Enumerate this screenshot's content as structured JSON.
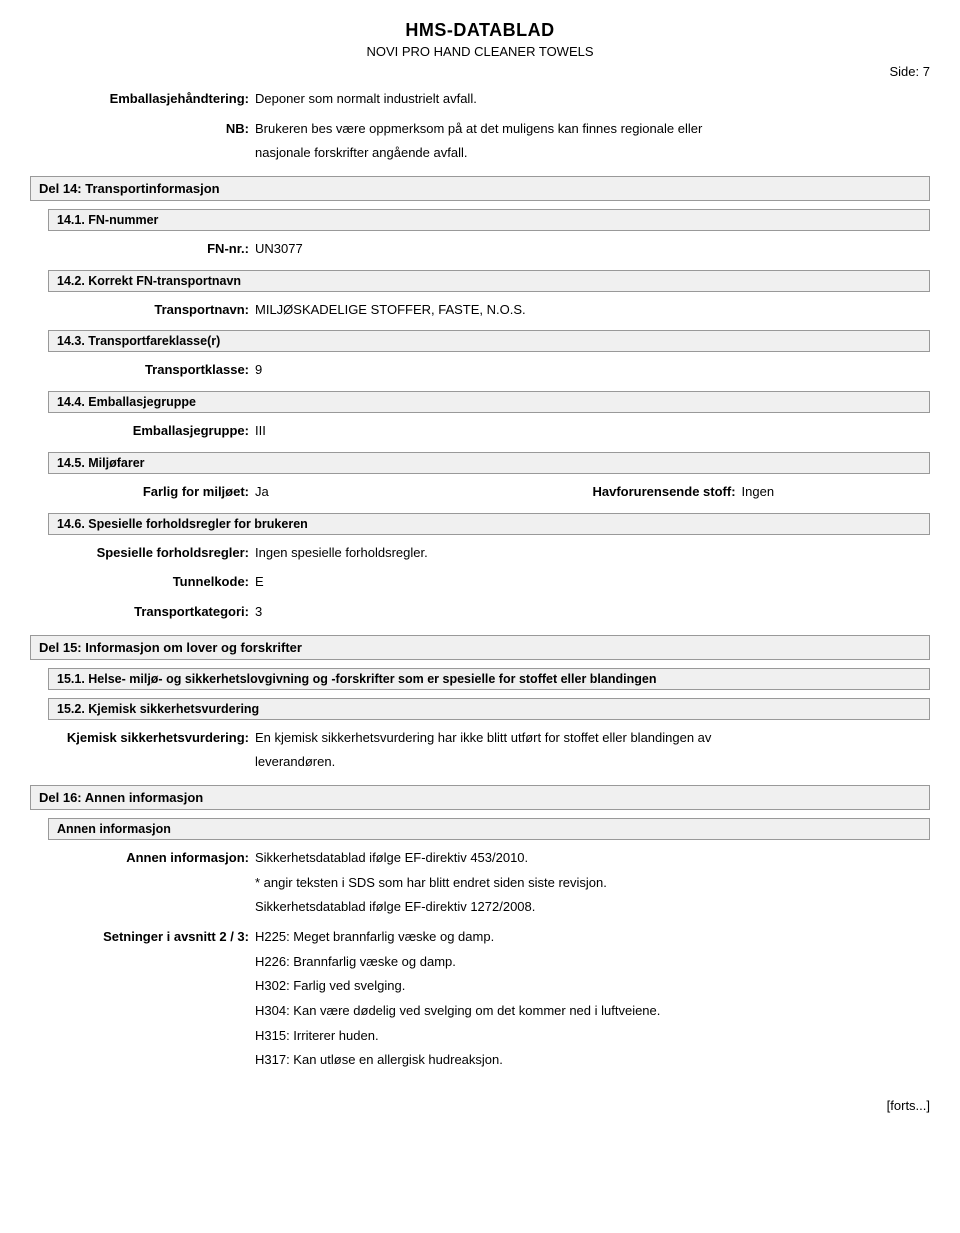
{
  "header": {
    "doc_title": "HMS-DATABLAD",
    "doc_subtitle": "NOVI PRO HAND CLEANER TOWELS",
    "page_label": "Side:",
    "page_no": "7"
  },
  "pre_section": {
    "handling_label": "Emballasjehåndtering:",
    "handling_value": "Deponer som normalt industrielt avfall.",
    "nb_label": "NB:",
    "nb_value_1": "Brukeren bes være oppmerksom på at det muligens kan finnes regionale eller",
    "nb_value_2": "nasjonale forskrifter angående avfall."
  },
  "s14": {
    "title": "Del 14: Transportinformasjon",
    "s1": {
      "title": "14.1. FN-nummer",
      "fn_label": "FN-nr.:",
      "fn_value": "UN3077"
    },
    "s2": {
      "title": "14.2. Korrekt FN-transportnavn",
      "name_label": "Transportnavn:",
      "name_value": "MILJØSKADELIGE STOFFER, FASTE, N.O.S."
    },
    "s3": {
      "title": "14.3. Transportfareklasse(r)",
      "class_label": "Transportklasse:",
      "class_value": "9"
    },
    "s4": {
      "title": "14.4. Emballasjegruppe",
      "group_label": "Emballasjegruppe:",
      "group_value": "III"
    },
    "s5": {
      "title": "14.5. Miljøfarer",
      "env_label": "Farlig for miljøet:",
      "env_value": "Ja",
      "marine_label": "Havforurensende stoff:",
      "marine_value": "Ingen"
    },
    "s6": {
      "title": "14.6. Spesielle forholdsregler for brukeren",
      "prec_label": "Spesielle forholdsregler:",
      "prec_value": "Ingen spesielle forholdsregler.",
      "tunnel_label": "Tunnelkode:",
      "tunnel_value": "E",
      "cat_label": "Transportkategori:",
      "cat_value": "3"
    }
  },
  "s15": {
    "title": "Del 15: Informasjon om lover og forskrifter",
    "s1": {
      "title": "15.1. Helse- miljø- og sikkerhetslovgivning og -forskrifter som er spesielle for stoffet eller blandingen"
    },
    "s2": {
      "title": "15.2. Kjemisk sikkerhetsvurdering",
      "assess_label": "Kjemisk sikkerhetsvurdering:",
      "assess_value_1": "En kjemisk sikkerhetsvurdering har ikke blitt utført for stoffet eller blandingen av",
      "assess_value_2": "leverandøren."
    }
  },
  "s16": {
    "title": "Del 16: Annen informasjon",
    "sub": "Annen informasjon",
    "info_label": "Annen informasjon:",
    "info_1": "Sikkerhetsdatablad ifølge EF-direktiv 453/2010.",
    "info_2": "* angir teksten i SDS som har blitt endret siden siste revisjon.",
    "info_3": "Sikkerhetsdatablad ifølge EF-direktiv 1272/2008.",
    "phrases_label": "Setninger i avsnitt 2 / 3:",
    "p1": "H225: Meget brannfarlig væske og damp.",
    "p2": "H226: Brannfarlig væske og damp.",
    "p3": "H302: Farlig ved svelging.",
    "p4": "H304: Kan være dødelig ved svelging om det kommer ned i luftveiene.",
    "p5": "H315: Irriterer huden.",
    "p6": "H317: Kan utløse en allergisk hudreaksjon."
  },
  "footer": {
    "cont": "[forts...]"
  }
}
